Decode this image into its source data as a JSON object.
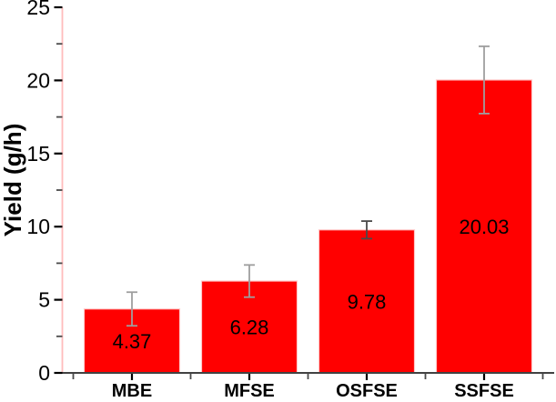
{
  "chart_data": {
    "type": "bar",
    "title": "",
    "xlabel": "",
    "ylabel": "Yield (g/h)",
    "categories": [
      "MBE",
      "MFSE",
      "OSFSE",
      "SSFSE"
    ],
    "values": [
      4.37,
      6.28,
      9.78,
      20.03
    ],
    "value_labels": [
      "4.37",
      "6.28",
      "9.78",
      "20.03"
    ],
    "errors": [
      1.15,
      1.1,
      0.6,
      2.3
    ],
    "ylim": [
      0,
      25
    ],
    "ytick_values": [
      0,
      5,
      10,
      15,
      20,
      25
    ],
    "ytick_labels": [
      "0",
      "5",
      "10",
      "15",
      "20",
      "25"
    ],
    "minor_ytick_values": [
      2.5,
      7.5,
      12.5,
      17.5,
      22.5
    ],
    "grid": false,
    "legend": "none",
    "colors": {
      "bar_fill": "#ff0000",
      "bar_border": "#ffc9c9",
      "y_axis_line": "#ffbcbc",
      "x_axis_line": "#424242",
      "major_tick": "#000000",
      "minor_tick": "#4a4a4a",
      "text": "#000000",
      "error_bars": [
        "#9e9e9e",
        "#9e9e9e",
        "#4a4a4a",
        "#9e9e9e"
      ]
    }
  }
}
